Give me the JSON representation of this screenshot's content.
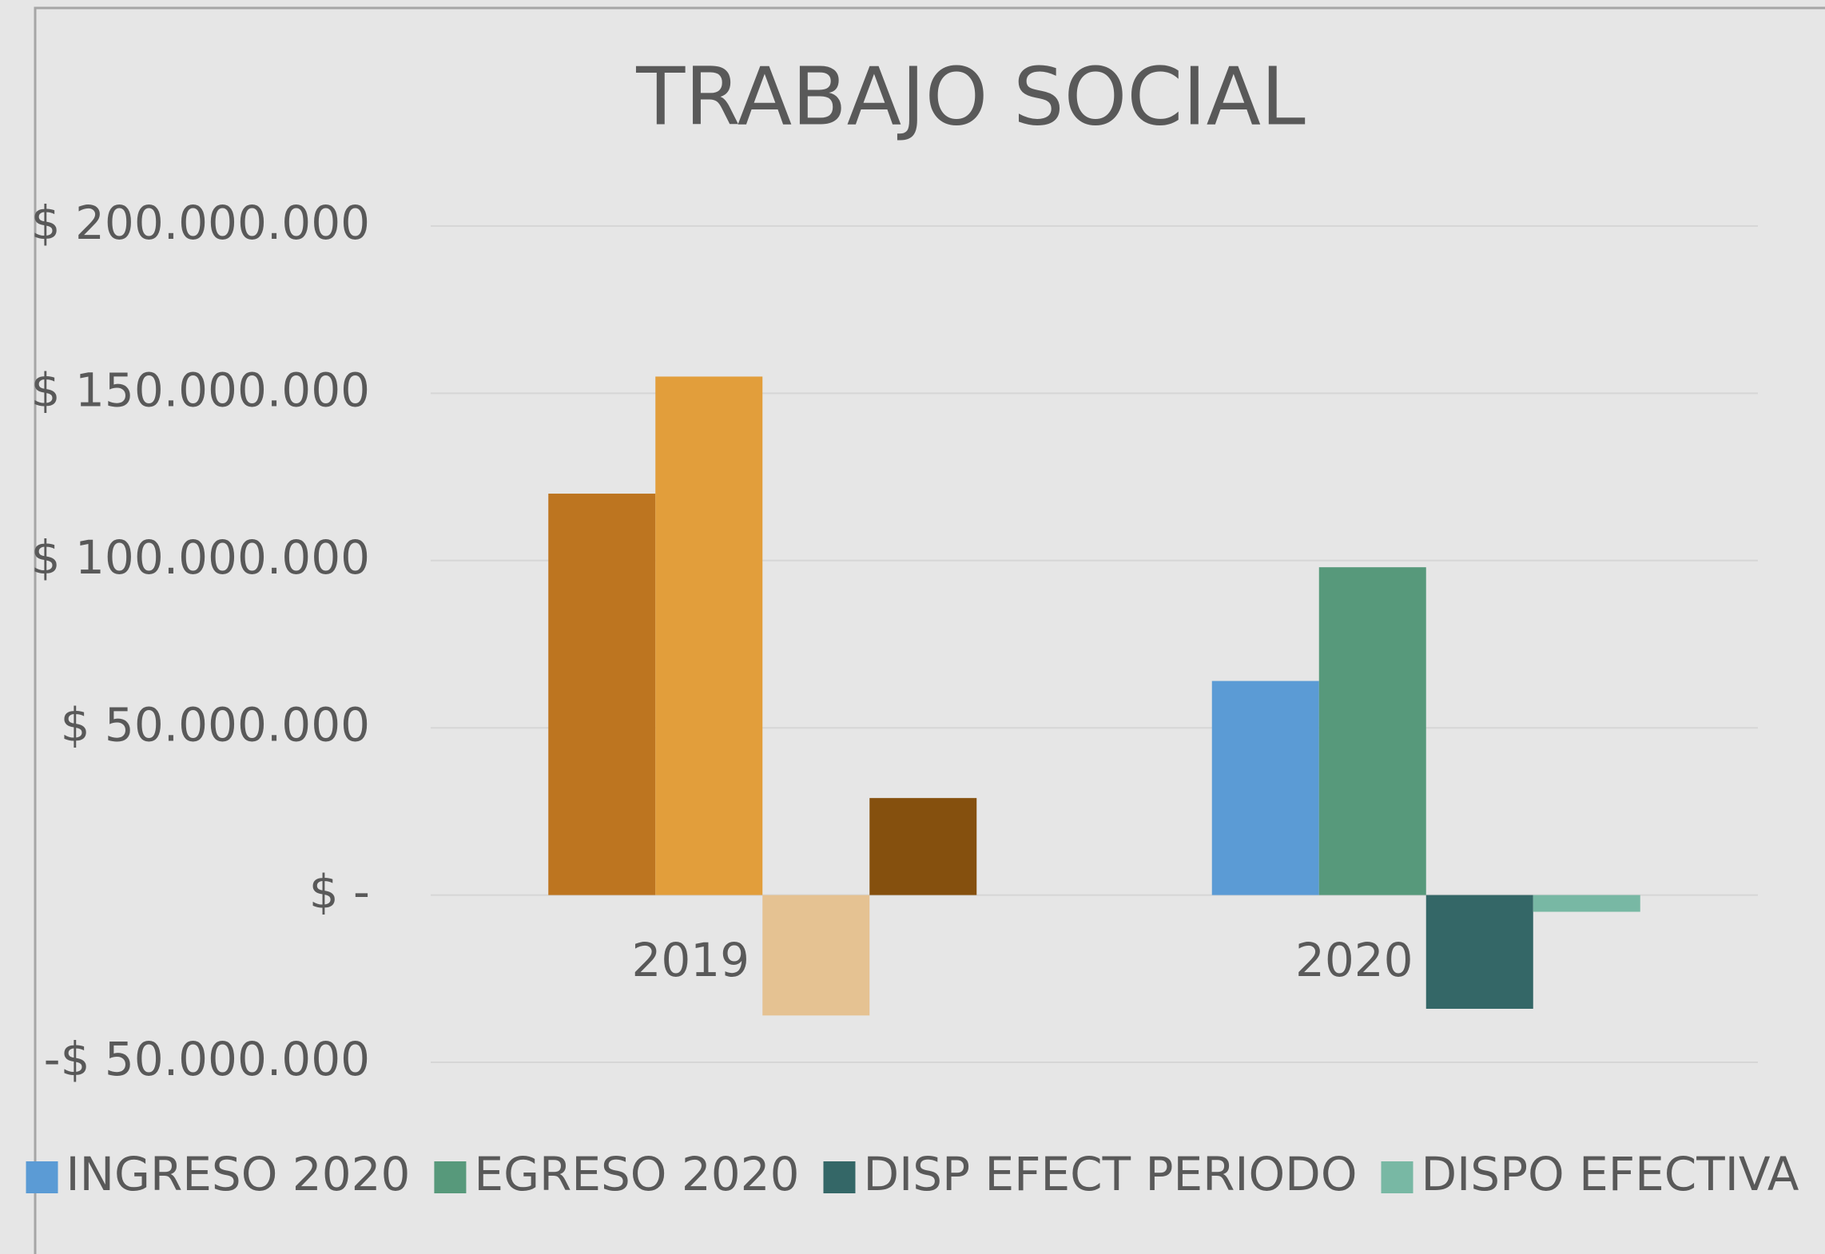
{
  "chart_data": {
    "type": "bar",
    "title": "TRABAJO SOCIAL",
    "categories": [
      "2019",
      "2020"
    ],
    "series": [
      {
        "name": "INGRESO 2020",
        "color": "#5b9bd5",
        "colors": [
          "#bd7520",
          "#5b9bd5"
        ],
        "values": [
          120000000,
          64000000
        ]
      },
      {
        "name": "EGRESO 2020",
        "color": "#57997b",
        "colors": [
          "#e29e3b",
          "#57997b"
        ],
        "values": [
          155000000,
          98000000
        ]
      },
      {
        "name": "DISP EFECT PERIODO",
        "color": "#346767",
        "colors": [
          "#e5c292",
          "#346767"
        ],
        "values": [
          -36000000,
          -34000000
        ]
      },
      {
        "name": "DISPO EFECTIVA",
        "color": "#78b8a4",
        "colors": [
          "#85500e",
          "#78b8a4"
        ],
        "values": [
          29000000,
          -5000000
        ]
      }
    ],
    "ylim": [
      -50000000,
      200000000
    ],
    "yticks": [
      {
        "value": -50000000,
        "label": "-$ 50.000.000"
      },
      {
        "value": 0,
        "label": "$ -"
      },
      {
        "value": 50000000,
        "label": "$ 50.000.000"
      },
      {
        "value": 100000000,
        "label": "$ 100.000.000"
      },
      {
        "value": 150000000,
        "label": "$ 150.000.000"
      },
      {
        "value": 200000000,
        "label": "$ 200.000.000"
      }
    ],
    "grid": true,
    "legend": "bottom"
  }
}
